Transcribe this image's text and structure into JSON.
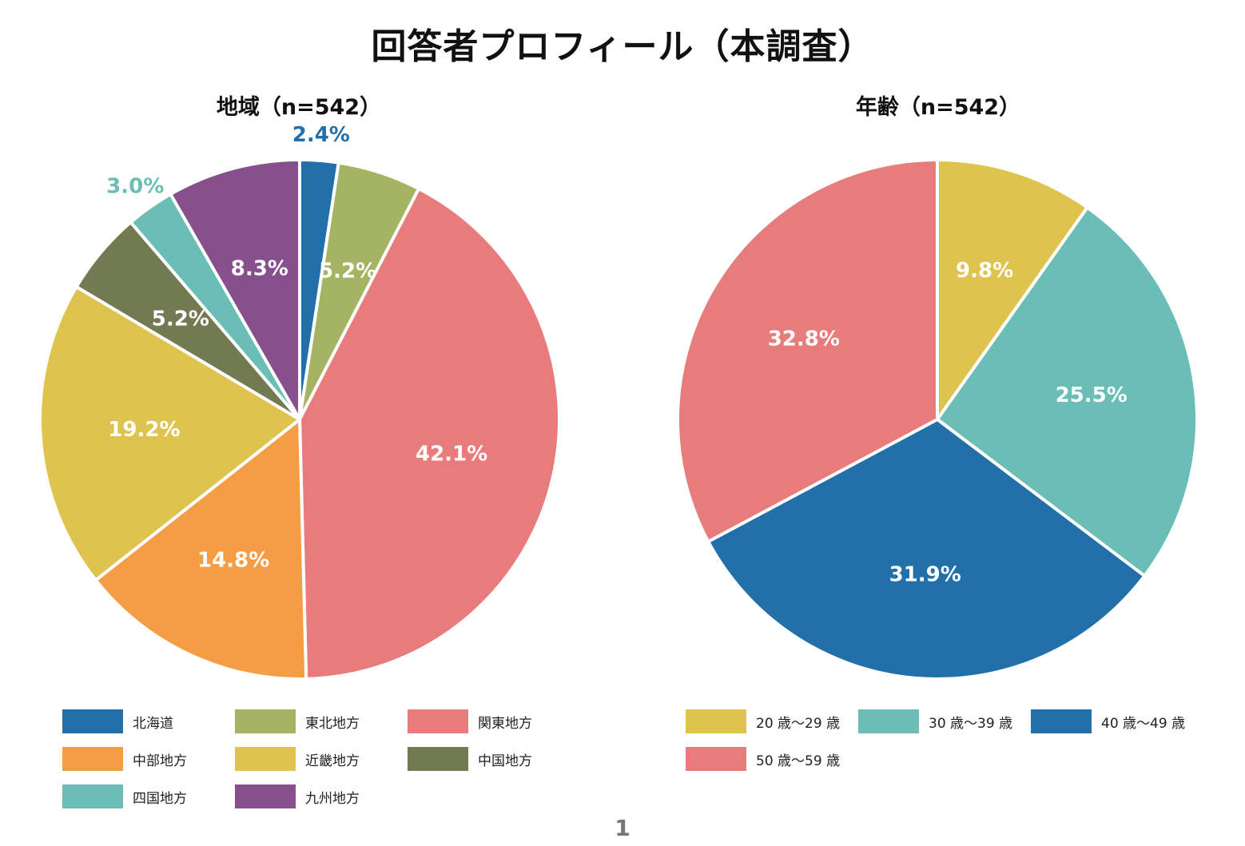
{
  "title": "回答者プロフィール（本調査）",
  "page_number": "1",
  "chart_data": [
    {
      "type": "pie",
      "title": "地域（n=542）",
      "slices": [
        {
          "label": "北海道",
          "value": 2.4,
          "display": "2.4%",
          "color": "#2270AA",
          "label_outside": true
        },
        {
          "label": "東北地方",
          "value": 5.2,
          "display": "5.2%",
          "color": "#A3B563",
          "label_outside": false
        },
        {
          "label": "関東地方",
          "value": 42.1,
          "display": "42.1%",
          "color": "#E87C7C",
          "label_outside": false
        },
        {
          "label": "中部地方",
          "value": 14.8,
          "display": "14.8%",
          "color": "#F59D45",
          "label_outside": false
        },
        {
          "label": "近畿地方",
          "value": 19.2,
          "display": "19.2%",
          "color": "#DFC34F",
          "label_outside": false
        },
        {
          "label": "中国地方",
          "value": 5.2,
          "display": "5.2%",
          "color": "#727A52",
          "label_outside": false
        },
        {
          "label": "四国地方",
          "value": 3.0,
          "display": "3.0%",
          "color": "#6BBEB5",
          "label_outside": true
        },
        {
          "label": "九州地方",
          "value": 8.3,
          "display": "8.3%",
          "color": "#874F8C",
          "label_outside": false
        }
      ],
      "legend_order": [
        "北海道",
        "東北地方",
        "関東地方",
        "中部地方",
        "近畿地方",
        "中国地方",
        "四国地方",
        "九州地方"
      ],
      "legend_placement": "bottom"
    },
    {
      "type": "pie",
      "title": "年齢（n=542）",
      "slices": [
        {
          "label": "20 歳〜29 歳",
          "value": 9.8,
          "display": "9.8%",
          "color": "#DFC34F",
          "label_outside": false
        },
        {
          "label": "30 歳〜39 歳",
          "value": 25.5,
          "display": "25.5%",
          "color": "#6BBEB5",
          "label_outside": false
        },
        {
          "label": "40 歳〜49 歳",
          "value": 31.9,
          "display": "31.9%",
          "color": "#2270AA",
          "label_outside": false
        },
        {
          "label": "50 歳〜59 歳",
          "value": 32.8,
          "display": "32.8%",
          "color": "#E87C7C",
          "label_outside": false
        }
      ],
      "legend_order": [
        "20 歳〜29 歳",
        "30 歳〜39 歳",
        "40 歳〜49 歳",
        "50 歳〜59 歳"
      ],
      "legend_placement": "bottom"
    }
  ]
}
